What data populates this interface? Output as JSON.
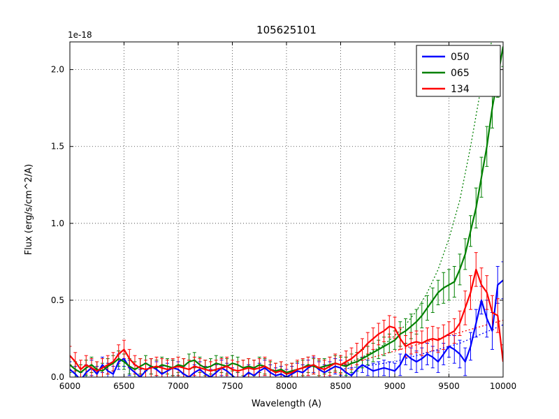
{
  "chart_data": {
    "type": "line",
    "title": "105625101",
    "xlabel": "Wavelength (A)",
    "ylabel": "Flux (erg/s/cm^2/A)",
    "y_offset_label": "1e-18",
    "xlim": [
      6000,
      10000
    ],
    "ylim": [
      0,
      2.18
    ],
    "grid": true,
    "background": "#ffffff",
    "x_ticks": [
      6000,
      6500,
      7000,
      7500,
      8000,
      8500,
      9000,
      9500,
      10000
    ],
    "x_tick_labels": [
      "6000",
      "6500",
      "7000",
      "7500",
      "8000",
      "8500",
      "9000",
      "9500",
      "10000"
    ],
    "y_ticks": [
      0,
      0.5,
      1.0,
      1.5,
      2.0
    ],
    "y_tick_labels": [
      "0.0",
      "0.5",
      "1.0",
      "1.5",
      "2.0"
    ],
    "legend": {
      "position": "upper right",
      "entries": [
        {
          "label": "050",
          "color": "#0000ff"
        },
        {
          "label": "065",
          "color": "#008000"
        },
        {
          "label": "134",
          "color": "#ff0000"
        }
      ]
    },
    "x": [
      6000,
      6050,
      6100,
      6150,
      6200,
      6250,
      6300,
      6350,
      6400,
      6450,
      6500,
      6550,
      6600,
      6650,
      6700,
      6750,
      6800,
      6850,
      6900,
      6950,
      7000,
      7050,
      7100,
      7150,
      7200,
      7250,
      7300,
      7350,
      7400,
      7450,
      7500,
      7550,
      7600,
      7650,
      7700,
      7750,
      7800,
      7850,
      7900,
      7950,
      8000,
      8050,
      8100,
      8150,
      8200,
      8250,
      8300,
      8350,
      8400,
      8450,
      8500,
      8550,
      8600,
      8650,
      8700,
      8750,
      8800,
      8850,
      8900,
      8950,
      9000,
      9050,
      9100,
      9150,
      9200,
      9250,
      9300,
      9350,
      9400,
      9450,
      9500,
      9550,
      9600,
      9650,
      9700,
      9750,
      9800,
      9850,
      9900,
      9950,
      10000
    ],
    "series": [
      {
        "name": "050",
        "color": "#0000ff",
        "style": "solid",
        "values": [
          0.05,
          0.02,
          -0.02,
          0.03,
          0.06,
          0.02,
          0.08,
          0.04,
          0.02,
          0.1,
          0.12,
          0.06,
          0.03,
          0.0,
          0.04,
          0.07,
          0.05,
          0.02,
          0.04,
          0.06,
          0.05,
          0.02,
          0.0,
          0.03,
          0.05,
          0.02,
          0.0,
          0.03,
          0.06,
          0.04,
          0.01,
          -0.02,
          0.0,
          0.03,
          0.01,
          0.04,
          0.06,
          0.03,
          0.01,
          0.02,
          0.0,
          0.02,
          0.04,
          0.03,
          0.06,
          0.08,
          0.05,
          0.03,
          0.05,
          0.07,
          0.06,
          0.03,
          0.01,
          0.05,
          0.08,
          0.06,
          0.04,
          0.05,
          0.06,
          0.05,
          0.04,
          0.08,
          0.15,
          0.12,
          0.1,
          0.12,
          0.15,
          0.13,
          0.1,
          0.15,
          0.2,
          0.18,
          0.15,
          0.1,
          0.2,
          0.35,
          0.5,
          0.38,
          0.3,
          0.6,
          0.63
        ],
        "yerr": [
          0.05,
          0.05,
          0.05,
          0.05,
          0.05,
          0.05,
          0.05,
          0.05,
          0.05,
          0.05,
          0.05,
          0.05,
          0.05,
          0.05,
          0.05,
          0.05,
          0.05,
          0.05,
          0.05,
          0.05,
          0.05,
          0.05,
          0.05,
          0.05,
          0.05,
          0.05,
          0.05,
          0.05,
          0.05,
          0.05,
          0.05,
          0.05,
          0.05,
          0.05,
          0.05,
          0.05,
          0.05,
          0.05,
          0.05,
          0.05,
          0.05,
          0.05,
          0.05,
          0.05,
          0.05,
          0.05,
          0.05,
          0.05,
          0.05,
          0.05,
          0.05,
          0.05,
          0.05,
          0.05,
          0.05,
          0.05,
          0.05,
          0.05,
          0.05,
          0.05,
          0.05,
          0.07,
          0.07,
          0.07,
          0.07,
          0.07,
          0.07,
          0.07,
          0.07,
          0.07,
          0.07,
          0.09,
          0.09,
          0.09,
          0.09,
          0.09,
          0.09,
          0.12,
          0.12,
          0.12,
          0.12
        ]
      },
      {
        "name": "065",
        "color": "#008000",
        "style": "solid",
        "values": [
          0.08,
          0.05,
          0.03,
          0.06,
          0.08,
          0.05,
          0.04,
          0.07,
          0.09,
          0.12,
          0.1,
          0.07,
          0.05,
          0.07,
          0.09,
          0.07,
          0.06,
          0.08,
          0.07,
          0.06,
          0.08,
          0.07,
          0.1,
          0.11,
          0.08,
          0.06,
          0.07,
          0.09,
          0.08,
          0.07,
          0.09,
          0.08,
          0.06,
          0.07,
          0.06,
          0.08,
          0.07,
          0.05,
          0.04,
          0.05,
          0.03,
          0.04,
          0.05,
          0.06,
          0.08,
          0.07,
          0.06,
          0.07,
          0.08,
          0.09,
          0.08,
          0.07,
          0.09,
          0.1,
          0.12,
          0.14,
          0.16,
          0.18,
          0.2,
          0.22,
          0.24,
          0.28,
          0.3,
          0.33,
          0.36,
          0.4,
          0.45,
          0.5,
          0.55,
          0.58,
          0.6,
          0.62,
          0.7,
          0.8,
          0.95,
          1.1,
          1.3,
          1.5,
          1.75,
          1.95,
          2.15
        ],
        "yerr": [
          0.05,
          0.05,
          0.05,
          0.05,
          0.05,
          0.05,
          0.05,
          0.05,
          0.05,
          0.05,
          0.05,
          0.05,
          0.05,
          0.05,
          0.05,
          0.05,
          0.05,
          0.05,
          0.05,
          0.05,
          0.05,
          0.05,
          0.05,
          0.05,
          0.05,
          0.05,
          0.05,
          0.05,
          0.05,
          0.05,
          0.05,
          0.05,
          0.05,
          0.05,
          0.05,
          0.05,
          0.05,
          0.05,
          0.05,
          0.05,
          0.05,
          0.05,
          0.05,
          0.05,
          0.05,
          0.05,
          0.05,
          0.05,
          0.05,
          0.05,
          0.05,
          0.06,
          0.06,
          0.06,
          0.06,
          0.06,
          0.06,
          0.06,
          0.06,
          0.06,
          0.06,
          0.08,
          0.08,
          0.08,
          0.08,
          0.08,
          0.08,
          0.08,
          0.08,
          0.1,
          0.1,
          0.1,
          0.1,
          0.1,
          0.1,
          0.13,
          0.13,
          0.13,
          0.13,
          0.13,
          0.13
        ]
      },
      {
        "name": "134",
        "color": "#ff0000",
        "style": "solid",
        "values": [
          0.14,
          0.1,
          0.05,
          0.08,
          0.06,
          0.04,
          0.06,
          0.08,
          0.1,
          0.15,
          0.18,
          0.12,
          0.08,
          0.06,
          0.05,
          0.06,
          0.07,
          0.06,
          0.05,
          0.06,
          0.07,
          0.06,
          0.05,
          0.07,
          0.06,
          0.05,
          0.04,
          0.05,
          0.06,
          0.07,
          0.05,
          0.04,
          0.05,
          0.06,
          0.05,
          0.06,
          0.07,
          0.05,
          0.03,
          0.04,
          0.02,
          0.03,
          0.05,
          0.06,
          0.07,
          0.08,
          0.06,
          0.05,
          0.07,
          0.09,
          0.08,
          0.1,
          0.12,
          0.15,
          0.18,
          0.22,
          0.25,
          0.28,
          0.3,
          0.33,
          0.32,
          0.25,
          0.2,
          0.22,
          0.23,
          0.22,
          0.24,
          0.25,
          0.24,
          0.26,
          0.28,
          0.3,
          0.35,
          0.45,
          0.55,
          0.7,
          0.6,
          0.55,
          0.42,
          0.4,
          0.1
        ],
        "yerr": [
          0.06,
          0.06,
          0.06,
          0.06,
          0.06,
          0.06,
          0.06,
          0.06,
          0.06,
          0.06,
          0.06,
          0.06,
          0.06,
          0.06,
          0.06,
          0.06,
          0.06,
          0.06,
          0.06,
          0.06,
          0.06,
          0.06,
          0.06,
          0.06,
          0.06,
          0.06,
          0.06,
          0.06,
          0.06,
          0.06,
          0.06,
          0.06,
          0.06,
          0.06,
          0.06,
          0.06,
          0.06,
          0.06,
          0.06,
          0.06,
          0.06,
          0.06,
          0.06,
          0.06,
          0.06,
          0.06,
          0.06,
          0.06,
          0.06,
          0.06,
          0.06,
          0.07,
          0.07,
          0.07,
          0.07,
          0.07,
          0.07,
          0.07,
          0.07,
          0.07,
          0.07,
          0.07,
          0.07,
          0.07,
          0.07,
          0.08,
          0.08,
          0.08,
          0.08,
          0.08,
          0.08,
          0.08,
          0.08,
          0.11,
          0.11,
          0.11,
          0.11,
          0.11,
          0.11,
          0.11,
          0.11
        ]
      }
    ],
    "models": [
      {
        "name": "050",
        "color": "#0000ff",
        "style": "dotted",
        "x": [
          8500,
          8600,
          8700,
          8800,
          8900,
          9000,
          9100,
          9200,
          9300,
          9400,
          9500,
          9600,
          9700,
          9800,
          9900,
          10000
        ],
        "values": [
          0.05,
          0.06,
          0.07,
          0.08,
          0.09,
          0.1,
          0.12,
          0.14,
          0.16,
          0.18,
          0.2,
          0.22,
          0.25,
          0.28,
          0.31,
          0.34
        ]
      },
      {
        "name": "065",
        "color": "#008000",
        "style": "dotted",
        "x": [
          8500,
          8600,
          8700,
          8800,
          8900,
          9000,
          9100,
          9200,
          9300,
          9400,
          9500,
          9600,
          9700,
          9800,
          9900,
          10000
        ],
        "values": [
          0.08,
          0.1,
          0.13,
          0.17,
          0.21,
          0.27,
          0.34,
          0.43,
          0.55,
          0.7,
          0.9,
          1.15,
          1.5,
          1.9,
          2.2,
          2.35
        ]
      },
      {
        "name": "134",
        "color": "#ff0000",
        "style": "dotted",
        "x": [
          8500,
          8600,
          8700,
          8800,
          8900,
          9000,
          9100,
          9200,
          9300,
          9400,
          9500,
          9600,
          9700,
          9800,
          9900,
          10000
        ],
        "values": [
          0.08,
          0.09,
          0.11,
          0.13,
          0.15,
          0.17,
          0.19,
          0.21,
          0.23,
          0.25,
          0.27,
          0.29,
          0.31,
          0.33,
          0.35,
          0.37
        ]
      }
    ]
  }
}
